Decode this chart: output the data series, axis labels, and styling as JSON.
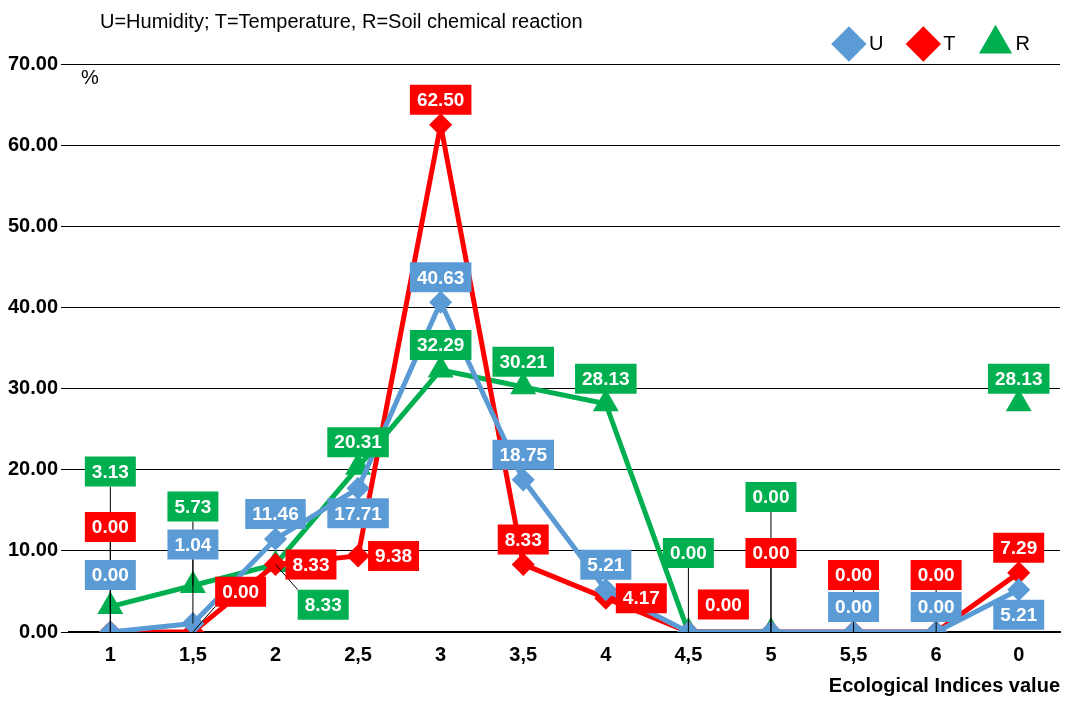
{
  "chart_data": {
    "type": "line",
    "title": "U=Humidity; T=Temperature, R=Soil chemical reaction",
    "xlabel": "Ecological Indices value",
    "ylabel": "%",
    "categories": [
      "1",
      "1,5",
      "2",
      "2,5",
      "3",
      "3,5",
      "4",
      "4,5",
      "5",
      "5,5",
      "6",
      "0"
    ],
    "series": [
      {
        "name": "U",
        "color": "#5b9bd5",
        "marker": "diamond",
        "values": [
          0,
          1.04,
          11.46,
          17.71,
          40.63,
          18.75,
          5.21,
          0,
          0,
          0,
          0,
          5.21
        ],
        "value_labels": [
          "0.00",
          "1.04",
          "11.46",
          "17.71",
          "40.63",
          "18.75",
          "5.21",
          null,
          null,
          "0.00",
          "0.00",
          "5.21"
        ]
      },
      {
        "name": "T",
        "color": "#ff0000",
        "marker": "diamond",
        "values": [
          0,
          0,
          8.33,
          9.38,
          62.5,
          8.33,
          4.17,
          0,
          0,
          0,
          0,
          7.29
        ],
        "value_labels": [
          "0.00",
          "0.00",
          "8.33",
          "9.38",
          "62.50",
          "8.33",
          "4.17",
          "0.00",
          "0.00",
          "0.00",
          "0.00",
          "7.29"
        ]
      },
      {
        "name": "R",
        "color": "#00b050",
        "marker": "triangle",
        "values": [
          3.13,
          5.73,
          8.33,
          20.31,
          32.29,
          30.21,
          28.13,
          0,
          0,
          null,
          null,
          28.13
        ],
        "value_labels": [
          "3.13",
          "5.73",
          "8.33",
          "20.31",
          "32.29",
          "30.21",
          "28.13",
          "0.00",
          "0.00",
          null,
          null,
          "28.13"
        ]
      }
    ],
    "ylim": [
      0,
      70
    ],
    "yticks": [
      {
        "value": 0,
        "label": "0.00"
      },
      {
        "value": 10,
        "label": "10.00"
      },
      {
        "value": 20,
        "label": "20.00"
      },
      {
        "value": 30,
        "label": "30.00"
      },
      {
        "value": 40,
        "label": "40.00"
      },
      {
        "value": 50,
        "label": "50.00"
      },
      {
        "value": 60,
        "label": "60.00"
      },
      {
        "value": 70,
        "label": "70.00"
      }
    ],
    "grid": "y",
    "legend": "top right"
  }
}
